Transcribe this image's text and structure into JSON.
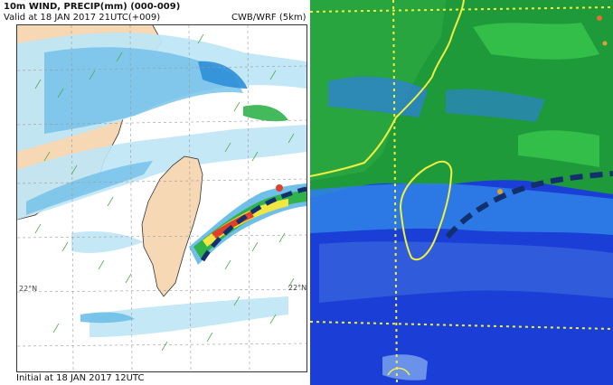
{
  "left_panel": {
    "title": "10m WIND, PRECIP(mm) (000-009)",
    "valid_time": "Valid at 18 JAN 2017 21UTC(+009)",
    "model": "CWB/WRF (5km)",
    "initial_time": "Initial at 18 JAN 2017 12UTC",
    "lat_label_left": "22°N",
    "lat_label_right": "22°N",
    "colors": {
      "land": "#f6d8b4",
      "precip_light": "#bfe6f6",
      "precip_mid": "#6fbfe8",
      "precip_heavy": "#2e8ed8",
      "precip_green": "#2fb34a",
      "precip_yellow": "#f2e640",
      "precip_red": "#e0402a",
      "front": "#13306e"
    }
  },
  "right_panel": {
    "description_icon": "satellite-image",
    "colors": {
      "ocean": "#1b3fd6",
      "cloud_green": "#1f9a3a",
      "cloud_bright": "#34c24a",
      "cloud_mid": "#2f7fe8",
      "coastline": "#f0f040",
      "grid": "#f0f040",
      "front": "#13306e"
    }
  }
}
